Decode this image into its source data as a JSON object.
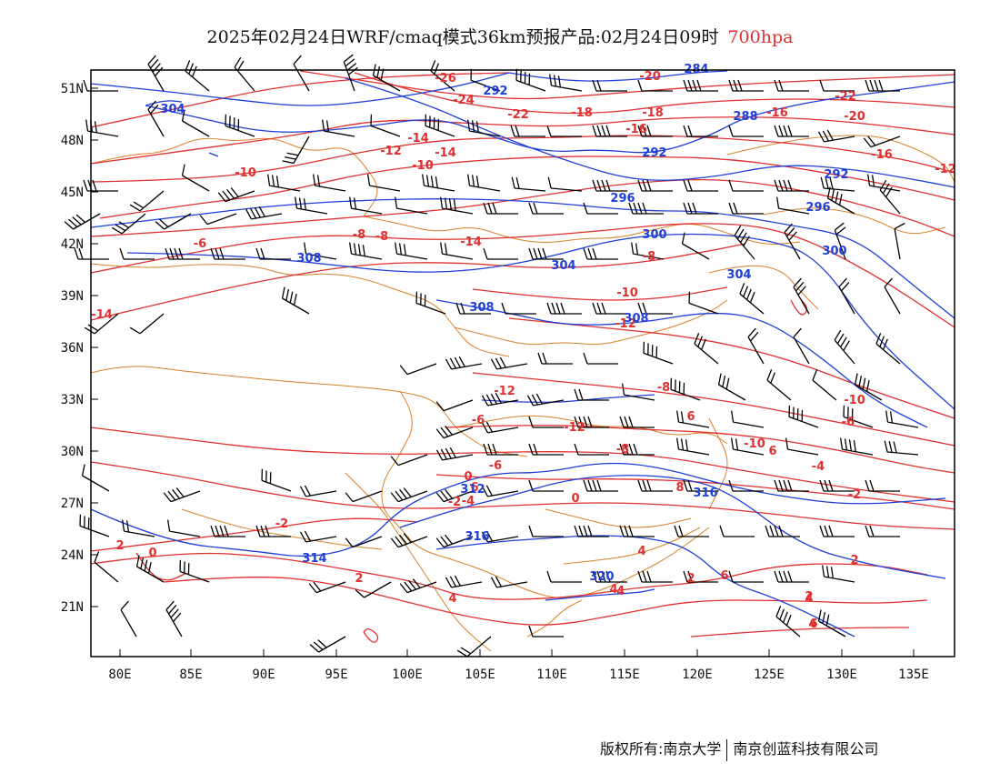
{
  "title": {
    "main": "2025年02月24日WRF/cmaq模式36km预报产品:02月24日09时",
    "level": "700hpa",
    "level_color": "#e03030"
  },
  "footer": {
    "copyright": "版权所有:南京大学",
    "company": "南京创蓝科技有限公司"
  },
  "map": {
    "lon_ticks": [
      "80E",
      "85E",
      "90E",
      "95E",
      "100E",
      "105E",
      "110E",
      "115E",
      "120E",
      "125E",
      "130E",
      "135E"
    ],
    "lat_ticks": [
      "51N",
      "48N",
      "45N",
      "42N",
      "39N",
      "36N",
      "33N",
      "30N",
      "27N",
      "24N",
      "21N"
    ],
    "colors": {
      "temperature": "#e03030",
      "geopotential": "#1f3fd8",
      "boundary": "#d9822b",
      "wind": "#000000",
      "frame": "#000000"
    },
    "temperature_labels": [
      "-26",
      "-24",
      "-22",
      "-20",
      "-22",
      "-20",
      "-18",
      "-16",
      "-18",
      "-16",
      "-14",
      "-16",
      "-14",
      "-12",
      "-10",
      "-12",
      "-10",
      "-8",
      "-14",
      "-8",
      "-6",
      "-8",
      "-10",
      "-12",
      "-14",
      "-12",
      "-10",
      "-6",
      "-8",
      "-6",
      "-12",
      "-10",
      "-8",
      "-6",
      "-4",
      "-2",
      "0",
      "-4",
      "-2",
      "0",
      "-2",
      "2",
      "0",
      "4",
      "2",
      "4",
      "4",
      "2",
      "6",
      "2",
      "4",
      "6",
      "6",
      "8",
      "6",
      "-4",
      "2",
      "4",
      "6"
    ],
    "height_labels": [
      "304",
      "292",
      "284",
      "288",
      "292",
      "296",
      "292",
      "296",
      "300",
      "300",
      "304",
      "308",
      "304",
      "308",
      "308",
      "312",
      "316",
      "316",
      "320",
      "314"
    ]
  }
}
